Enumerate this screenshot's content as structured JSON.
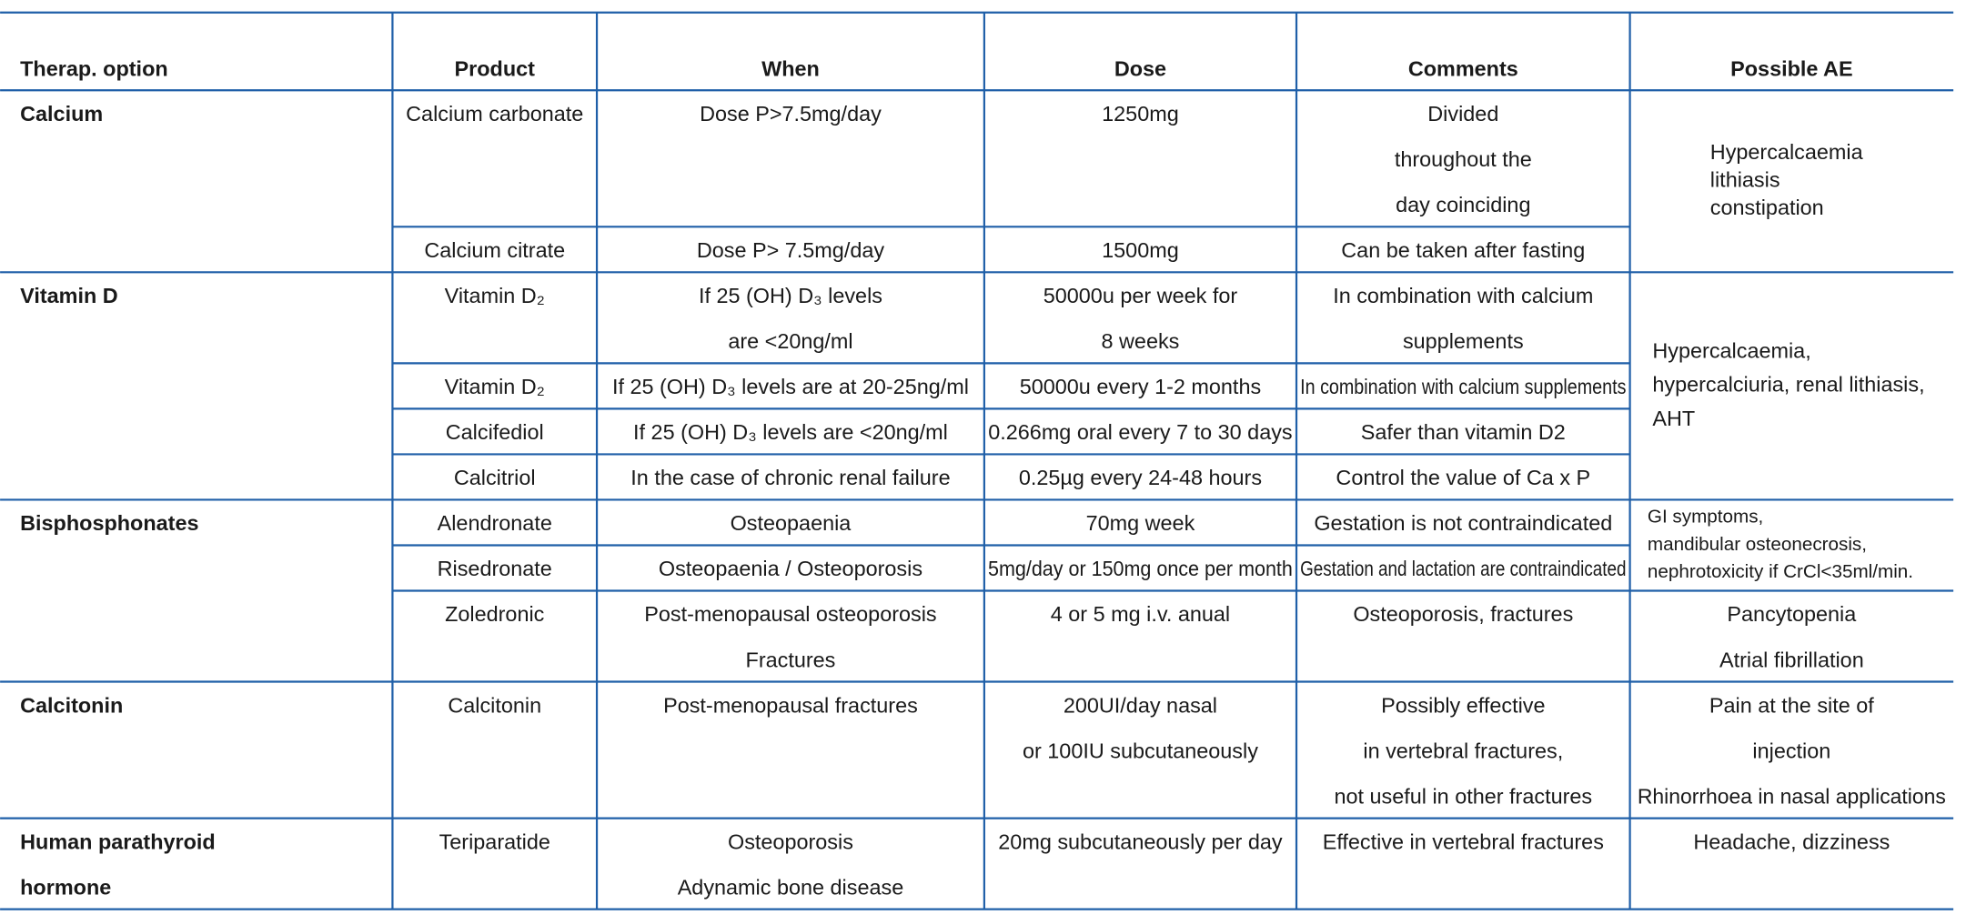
{
  "table": {
    "header": [
      "Therap. option",
      "Product",
      "When",
      "Dose",
      "Comments",
      "Possible AE"
    ],
    "sections": [
      {
        "option": [
          "Calcium"
        ],
        "rows": [
          {
            "product": [
              "Calcium carbonate"
            ],
            "when": [
              "Dose P>7.5mg/day"
            ],
            "dose": [
              "1250mg"
            ],
            "comments": [
              "Divided",
              "throughout the",
              "day coinciding"
            ]
          },
          {
            "product": [
              "Calcium citrate"
            ],
            "when": [
              "Dose P> 7.5mg/day"
            ],
            "dose": [
              "1500mg"
            ],
            "comments": [
              "Can be taken after fasting"
            ]
          }
        ],
        "ae": [
          [
            "Hypercalcaemia",
            "lithiasis",
            "constipation"
          ]
        ]
      },
      {
        "option": [
          "Vitamin D"
        ],
        "rows": [
          {
            "product": [
              "Vitamin D₂"
            ],
            "when": [
              "If 25 (OH) D₃ levels",
              "are <20ng/ml"
            ],
            "dose": [
              "50000u per week for",
              "8 weeks"
            ],
            "comments": [
              "In combination with calcium",
              "supplements"
            ]
          },
          {
            "product": [
              "Vitamin D₂"
            ],
            "when": [
              "If 25 (OH) D₃ levels are at 20-25ng/ml"
            ],
            "dose": [
              "50000u every 1-2 months"
            ],
            "comments": [
              "In combination with calcium supplements"
            ]
          },
          {
            "product": [
              "Calcifediol"
            ],
            "when": [
              "If 25 (OH) D₃ levels are <20ng/ml"
            ],
            "dose": [
              "0.266mg oral every 7 to 30 days"
            ],
            "comments": [
              "Safer than vitamin D2"
            ]
          },
          {
            "product": [
              "Calcitriol"
            ],
            "when": [
              "In the case of chronic renal failure"
            ],
            "dose": [
              "0.25µg every 24-48 hours"
            ],
            "comments": [
              "Control the value of Ca x P"
            ]
          }
        ],
        "ae": [
          [
            "Hypercalcaemia,",
            "hypercalciuria, renal lithiasis,",
            "AHT"
          ]
        ]
      },
      {
        "option": [
          "Bisphosphonates"
        ],
        "rows": [
          {
            "product": [
              "Alendronate"
            ],
            "when": [
              "Osteopaenia"
            ],
            "dose": [
              "70mg week"
            ],
            "comments": [
              "Gestation is not contraindicated"
            ]
          },
          {
            "product": [
              "Risedronate"
            ],
            "when": [
              "Osteopaenia / Osteoporosis"
            ],
            "dose": [
              "5mg/day or 150mg once per month"
            ],
            "comments": [
              "Gestation and lactation are contraindicated"
            ]
          },
          {
            "product": [
              "Zoledronic"
            ],
            "when": [
              "Post-menopausal osteoporosis",
              "Fractures"
            ],
            "dose": [
              "4 or 5 mg i.v. anual"
            ],
            "comments": [
              "Osteoporosis, fractures"
            ]
          }
        ],
        "ae": [
          [
            "GI symptoms,",
            "mandibular osteonecrosis,",
            "nephrotoxicity if CrCl<35ml/min."
          ],
          [
            "Pancytopenia",
            "Atrial fibrillation"
          ]
        ]
      },
      {
        "option": [
          "Calcitonin"
        ],
        "rows": [
          {
            "product": [
              "Calcitonin"
            ],
            "when": [
              "Post-menopausal fractures"
            ],
            "dose": [
              "200UI/day nasal",
              "or 100IU subcutaneously"
            ],
            "comments": [
              "Possibly effective",
              "in vertebral fractures,",
              "not useful in other fractures"
            ]
          }
        ],
        "ae": [
          [
            "Pain at the site of",
            "injection",
            "Rhinorrhoea in nasal applications"
          ]
        ]
      },
      {
        "option": [
          "Human parathyroid",
          "hormone"
        ],
        "rows": [
          {
            "product": [
              "Teriparatide"
            ],
            "when": [
              "Osteoporosis",
              "Adynamic bone disease"
            ],
            "dose": [
              "20mg subcutaneously per day"
            ],
            "comments": [
              "Effective in vertebral fractures"
            ]
          }
        ],
        "ae": [
          [
            "Headache, dizziness"
          ]
        ]
      }
    ]
  }
}
